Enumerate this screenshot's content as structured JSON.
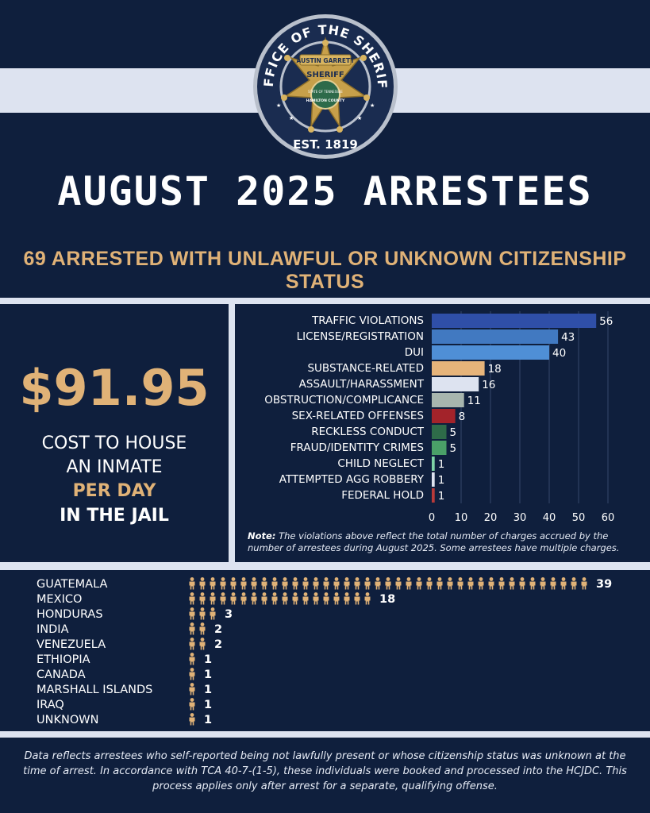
{
  "seal": {
    "top_text": "OFFICE OF THE SHERIFF",
    "bottom_text": "EST. 1819",
    "name_banner": "AUSTIN GARRETT",
    "badge_word": "SHERIFF",
    "county_text": "HAMILTON COUNTY",
    "state_text": "STATE OF TENNESSEE"
  },
  "header": {
    "title": "AUGUST 2025 ARRESTEES",
    "subtitle": "69 ARRESTED WITH UNLAWFUL OR UNKNOWN CITIZENSHIP STATUS"
  },
  "cost_panel": {
    "amount": "$91.95",
    "line1": "COST TO HOUSE",
    "line2": "AN INMATE",
    "line3": "PER DAY",
    "line4": "IN THE JAIL"
  },
  "chart_data": [
    {
      "type": "bar",
      "orientation": "horizontal",
      "categories": [
        "TRAFFIC VIOLATIONS",
        "LICENSE/REGISTRATION",
        "DUI",
        "SUBSTANCE-RELATED",
        "ASSAULT/HARASSMENT",
        "OBSTRUCTION/COMPLICANCE",
        "SEX-RELATED OFFENSES",
        "RECKLESS CONDUCT",
        "FRAUD/IDENTITY CRIMES",
        "CHILD NEGLECT",
        "ATTEMPTED AGG ROBBERY",
        "FEDERAL HOLD"
      ],
      "values": [
        56,
        43,
        40,
        18,
        16,
        11,
        8,
        5,
        5,
        1,
        1,
        1
      ],
      "colors": [
        "#2f4fa8",
        "#4179c1",
        "#4f8fd6",
        "#e6b47a",
        "#dde3f0",
        "#a7b5ae",
        "#a3232a",
        "#2e6b49",
        "#4aa068",
        "#7ed3a6",
        "#dde3f0",
        "#b83a3a"
      ],
      "xlim": [
        0,
        60
      ],
      "xticks": [
        0,
        10,
        20,
        30,
        40,
        50,
        60
      ],
      "grid": true,
      "data_labels": true
    },
    {
      "type": "bar",
      "orientation": "horizontal",
      "style": "pictogram",
      "icon": "person-icon",
      "categories": [
        "GUATEMALA",
        "MEXICO",
        "HONDURAS",
        "INDIA",
        "VENEZUELA",
        "ETHIOPIA",
        "CANADA",
        "MARSHALL ISLANDS",
        "IRAQ",
        "UNKNOWN"
      ],
      "values": [
        39,
        18,
        3,
        2,
        2,
        1,
        1,
        1,
        1,
        1
      ],
      "color": "#e0b277"
    }
  ],
  "note": {
    "label": "Note:",
    "text": "The violations above reflect the total number of charges accrued by the number of arrestees during August 2025. Some arrestees have multiple charges."
  },
  "footer": {
    "text": "Data reflects arrestees who self-reported being not lawfully present or whose citizenship status was unknown at the time of arrest. In accordance with TCA 40-7-(1-5), these individuals were booked and processed into the HCJDC. This process applies only after arrest for a separate, qualifying offense."
  }
}
